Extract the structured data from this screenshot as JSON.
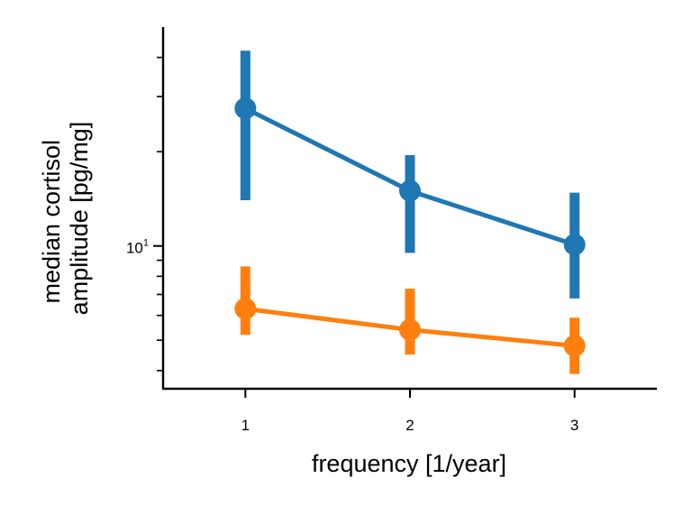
{
  "chart_data": {
    "type": "line",
    "title": "",
    "xlabel": "frequency [1/year]",
    "ylabel_lines": [
      "median cortisol",
      "amplitude [pg/mg]"
    ],
    "x": [
      1,
      2,
      3
    ],
    "xticks": [
      "1",
      "2",
      "3"
    ],
    "xlim": [
      0.5,
      3.5
    ],
    "yscale": "log",
    "ylim": [
      3.5,
      50
    ],
    "ytick_major": {
      "base": "10",
      "exp": "1",
      "value": 10
    },
    "yminor_ticks": [
      4,
      5,
      6,
      7,
      8,
      9,
      20,
      30,
      40
    ],
    "grid": false,
    "series": [
      {
        "color": "#1f77b4",
        "values": [
          27.5,
          15.0,
          10.1
        ],
        "err_low": [
          14.0,
          9.5,
          6.8
        ],
        "err_high": [
          42.0,
          19.5,
          14.8
        ]
      },
      {
        "color": "#ff7f0e",
        "values": [
          6.3,
          5.4,
          4.8
        ],
        "err_low": [
          5.2,
          4.5,
          3.9
        ],
        "err_high": [
          8.6,
          7.3,
          5.9
        ]
      }
    ]
  }
}
